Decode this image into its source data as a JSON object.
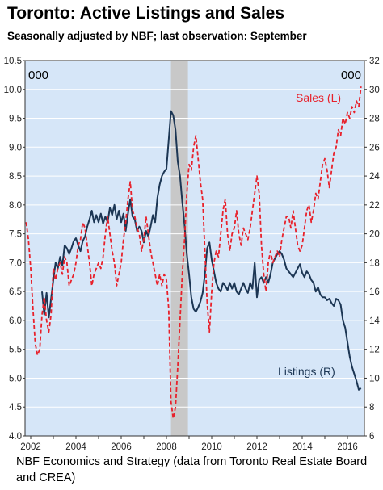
{
  "title": "Toronto: Active Listings and Sales",
  "subtitle": "Seasonally adjusted by NBF; last observation: September",
  "source": "NBF Economics and Strategy (data from Toronto Real Estate Board and CREA)",
  "chart_data": {
    "type": "line",
    "y_left_unit": "000",
    "y_right_unit": "000",
    "y_left_range": [
      4.0,
      10.5
    ],
    "y_right_range": [
      6,
      32
    ],
    "y_left_ticks": [
      "4.0",
      "4.5",
      "5.0",
      "5.5",
      "6.0",
      "6.5",
      "7.0",
      "7.5",
      "8.0",
      "8.5",
      "9.0",
      "9.5",
      "10.0",
      "10.5"
    ],
    "y_right_ticks": [
      "6",
      "8",
      "10",
      "12",
      "14",
      "16",
      "18",
      "20",
      "22",
      "24",
      "26",
      "28",
      "30",
      "32"
    ],
    "x_range": [
      2001.75,
      2016.75
    ],
    "x_tick_labels": [
      "2002",
      "2004",
      "2006",
      "2008",
      "2010",
      "2012",
      "2014",
      "2016"
    ],
    "recession_shade": [
      2008.2,
      2008.95
    ],
    "plot_background": "#d6e6f8",
    "colors": {
      "listings": "#1c3654",
      "sales": "#e8212b",
      "shade": "#c8c8c8"
    },
    "series": [
      {
        "name": "Listings (R)",
        "label": "Listings (R)",
        "axis": "right",
        "style": "solid",
        "color": "#1c3654",
        "points": [
          [
            2002.5,
            16.0
          ],
          [
            2002.6,
            14.4
          ],
          [
            2002.7,
            15.9
          ],
          [
            2002.8,
            14.2
          ],
          [
            2002.9,
            15.5
          ],
          [
            2003.0,
            16.8
          ],
          [
            2003.1,
            18.0
          ],
          [
            2003.2,
            17.6
          ],
          [
            2003.3,
            18.4
          ],
          [
            2003.4,
            17.8
          ],
          [
            2003.5,
            19.2
          ],
          [
            2003.6,
            19.0
          ],
          [
            2003.7,
            18.6
          ],
          [
            2003.8,
            19.0
          ],
          [
            2003.9,
            19.5
          ],
          [
            2004.0,
            19.7
          ],
          [
            2004.1,
            19.2
          ],
          [
            2004.2,
            18.8
          ],
          [
            2004.3,
            19.5
          ],
          [
            2004.4,
            19.8
          ],
          [
            2004.5,
            20.5
          ],
          [
            2004.6,
            21.0
          ],
          [
            2004.7,
            21.6
          ],
          [
            2004.8,
            20.8
          ],
          [
            2004.9,
            21.3
          ],
          [
            2005.0,
            20.8
          ],
          [
            2005.1,
            21.4
          ],
          [
            2005.2,
            20.7
          ],
          [
            2005.3,
            21.2
          ],
          [
            2005.4,
            20.8
          ],
          [
            2005.5,
            21.8
          ],
          [
            2005.6,
            21.3
          ],
          [
            2005.7,
            22.0
          ],
          [
            2005.8,
            21.0
          ],
          [
            2005.9,
            21.6
          ],
          [
            2006.0,
            20.8
          ],
          [
            2006.1,
            21.4
          ],
          [
            2006.2,
            20.2
          ],
          [
            2006.3,
            21.4
          ],
          [
            2006.4,
            22.4
          ],
          [
            2006.5,
            21.2
          ],
          [
            2006.6,
            21.0
          ],
          [
            2006.7,
            20.2
          ],
          [
            2006.8,
            20.5
          ],
          [
            2006.9,
            20.2
          ],
          [
            2007.0,
            19.4
          ],
          [
            2007.1,
            20.2
          ],
          [
            2007.2,
            19.8
          ],
          [
            2007.3,
            20.5
          ],
          [
            2007.4,
            21.3
          ],
          [
            2007.5,
            20.8
          ],
          [
            2007.6,
            22.5
          ],
          [
            2007.7,
            23.4
          ],
          [
            2007.8,
            24.0
          ],
          [
            2007.9,
            24.3
          ],
          [
            2008.0,
            24.5
          ],
          [
            2008.1,
            26.5
          ],
          [
            2008.2,
            28.5
          ],
          [
            2008.3,
            28.2
          ],
          [
            2008.4,
            27.2
          ],
          [
            2008.5,
            25.0
          ],
          [
            2008.6,
            24.0
          ],
          [
            2008.7,
            22.2
          ],
          [
            2008.8,
            20.6
          ],
          [
            2008.9,
            18.6
          ],
          [
            2009.0,
            17.2
          ],
          [
            2009.1,
            15.6
          ],
          [
            2009.2,
            14.8
          ],
          [
            2009.3,
            14.6
          ],
          [
            2009.4,
            14.9
          ],
          [
            2009.5,
            15.3
          ],
          [
            2009.6,
            15.9
          ],
          [
            2009.7,
            17.2
          ],
          [
            2009.8,
            19.0
          ],
          [
            2009.9,
            19.4
          ],
          [
            2010.0,
            18.2
          ],
          [
            2010.1,
            17.4
          ],
          [
            2010.2,
            16.6
          ],
          [
            2010.3,
            16.2
          ],
          [
            2010.4,
            16.0
          ],
          [
            2010.5,
            16.6
          ],
          [
            2010.6,
            16.4
          ],
          [
            2010.7,
            16.1
          ],
          [
            2010.8,
            16.6
          ],
          [
            2010.9,
            16.2
          ],
          [
            2011.0,
            16.6
          ],
          [
            2011.1,
            16.0
          ],
          [
            2011.2,
            15.8
          ],
          [
            2011.3,
            16.2
          ],
          [
            2011.4,
            16.6
          ],
          [
            2011.5,
            16.2
          ],
          [
            2011.6,
            15.9
          ],
          [
            2011.7,
            16.6
          ],
          [
            2011.8,
            16.2
          ],
          [
            2011.9,
            18.0
          ],
          [
            2012.0,
            15.6
          ],
          [
            2012.1,
            16.8
          ],
          [
            2012.2,
            17.0
          ],
          [
            2012.3,
            16.6
          ],
          [
            2012.4,
            17.0
          ],
          [
            2012.5,
            16.6
          ],
          [
            2012.6,
            17.2
          ],
          [
            2012.7,
            18.0
          ],
          [
            2012.8,
            18.3
          ],
          [
            2012.9,
            18.6
          ],
          [
            2013.0,
            18.8
          ],
          [
            2013.1,
            18.6
          ],
          [
            2013.2,
            18.2
          ],
          [
            2013.3,
            17.6
          ],
          [
            2013.4,
            17.4
          ],
          [
            2013.5,
            17.2
          ],
          [
            2013.6,
            17.0
          ],
          [
            2013.7,
            17.3
          ],
          [
            2013.8,
            17.6
          ],
          [
            2013.9,
            17.9
          ],
          [
            2014.0,
            17.3
          ],
          [
            2014.1,
            17.0
          ],
          [
            2014.2,
            17.4
          ],
          [
            2014.3,
            17.2
          ],
          [
            2014.4,
            16.8
          ],
          [
            2014.5,
            16.6
          ],
          [
            2014.6,
            16.0
          ],
          [
            2014.7,
            16.3
          ],
          [
            2014.8,
            15.8
          ],
          [
            2014.9,
            15.6
          ],
          [
            2015.0,
            15.6
          ],
          [
            2015.1,
            15.4
          ],
          [
            2015.2,
            15.5
          ],
          [
            2015.3,
            15.2
          ],
          [
            2015.4,
            15.0
          ],
          [
            2015.5,
            15.5
          ],
          [
            2015.6,
            15.4
          ],
          [
            2015.7,
            15.1
          ],
          [
            2015.8,
            14.0
          ],
          [
            2015.9,
            13.5
          ],
          [
            2016.0,
            12.5
          ],
          [
            2016.1,
            11.5
          ],
          [
            2016.2,
            10.8
          ],
          [
            2016.3,
            10.3
          ],
          [
            2016.4,
            9.8
          ],
          [
            2016.5,
            9.2
          ],
          [
            2016.6,
            9.3
          ]
        ]
      },
      {
        "name": "Sales (L)",
        "label": "Sales (L)",
        "axis": "left",
        "style": "dashed",
        "color": "#e8212b",
        "points": [
          [
            2001.8,
            7.7
          ],
          [
            2001.9,
            7.4
          ],
          [
            2002.0,
            6.9
          ],
          [
            2002.1,
            6.2
          ],
          [
            2002.2,
            5.6
          ],
          [
            2002.3,
            5.4
          ],
          [
            2002.4,
            5.5
          ],
          [
            2002.5,
            6.1
          ],
          [
            2002.6,
            6.4
          ],
          [
            2002.7,
            6.0
          ],
          [
            2002.8,
            5.8
          ],
          [
            2002.9,
            6.1
          ],
          [
            2003.0,
            6.9
          ],
          [
            2003.1,
            6.7
          ],
          [
            2003.2,
            6.9
          ],
          [
            2003.3,
            7.0
          ],
          [
            2003.4,
            6.8
          ],
          [
            2003.5,
            7.1
          ],
          [
            2003.6,
            7.0
          ],
          [
            2003.7,
            6.6
          ],
          [
            2003.8,
            6.7
          ],
          [
            2003.9,
            6.8
          ],
          [
            2004.0,
            7.0
          ],
          [
            2004.1,
            7.3
          ],
          [
            2004.2,
            7.4
          ],
          [
            2004.3,
            7.7
          ],
          [
            2004.4,
            7.6
          ],
          [
            2004.5,
            7.3
          ],
          [
            2004.6,
            7.0
          ],
          [
            2004.7,
            6.6
          ],
          [
            2004.8,
            6.8
          ],
          [
            2004.9,
            6.9
          ],
          [
            2005.0,
            7.0
          ],
          [
            2005.1,
            6.9
          ],
          [
            2005.2,
            7.1
          ],
          [
            2005.3,
            7.5
          ],
          [
            2005.4,
            7.8
          ],
          [
            2005.5,
            7.5
          ],
          [
            2005.6,
            7.2
          ],
          [
            2005.7,
            7.0
          ],
          [
            2005.8,
            6.6
          ],
          [
            2005.9,
            6.8
          ],
          [
            2006.0,
            7.0
          ],
          [
            2006.1,
            7.4
          ],
          [
            2006.2,
            7.7
          ],
          [
            2006.3,
            8.1
          ],
          [
            2006.4,
            8.4
          ],
          [
            2006.5,
            7.9
          ],
          [
            2006.6,
            7.8
          ],
          [
            2006.7,
            7.6
          ],
          [
            2006.8,
            7.5
          ],
          [
            2006.9,
            7.2
          ],
          [
            2007.0,
            7.4
          ],
          [
            2007.1,
            7.8
          ],
          [
            2007.2,
            7.5
          ],
          [
            2007.3,
            7.2
          ],
          [
            2007.4,
            7.0
          ],
          [
            2007.5,
            6.8
          ],
          [
            2007.6,
            6.6
          ],
          [
            2007.7,
            6.8
          ],
          [
            2007.8,
            6.6
          ],
          [
            2007.9,
            6.8
          ],
          [
            2008.0,
            6.7
          ],
          [
            2008.1,
            6.2
          ],
          [
            2008.2,
            4.6
          ],
          [
            2008.3,
            4.3
          ],
          [
            2008.4,
            4.5
          ],
          [
            2008.5,
            5.2
          ],
          [
            2008.6,
            6.0
          ],
          [
            2008.7,
            6.8
          ],
          [
            2008.8,
            7.4
          ],
          [
            2008.9,
            8.2
          ],
          [
            2009.0,
            8.7
          ],
          [
            2009.1,
            8.6
          ],
          [
            2009.2,
            9.0
          ],
          [
            2009.3,
            9.2
          ],
          [
            2009.4,
            8.8
          ],
          [
            2009.5,
            8.4
          ],
          [
            2009.6,
            8.1
          ],
          [
            2009.7,
            7.2
          ],
          [
            2009.8,
            6.3
          ],
          [
            2009.9,
            5.8
          ],
          [
            2010.0,
            6.5
          ],
          [
            2010.1,
            7.0
          ],
          [
            2010.2,
            7.2
          ],
          [
            2010.3,
            7.1
          ],
          [
            2010.4,
            7.5
          ],
          [
            2010.5,
            7.9
          ],
          [
            2010.6,
            8.1
          ],
          [
            2010.7,
            7.5
          ],
          [
            2010.8,
            7.2
          ],
          [
            2010.9,
            7.5
          ],
          [
            2011.0,
            7.6
          ],
          [
            2011.1,
            7.9
          ],
          [
            2011.2,
            7.5
          ],
          [
            2011.3,
            7.3
          ],
          [
            2011.4,
            7.6
          ],
          [
            2011.5,
            7.5
          ],
          [
            2011.6,
            7.4
          ],
          [
            2011.7,
            7.6
          ],
          [
            2011.8,
            7.9
          ],
          [
            2011.9,
            8.2
          ],
          [
            2012.0,
            8.5
          ],
          [
            2012.1,
            8.2
          ],
          [
            2012.2,
            7.3
          ],
          [
            2012.3,
            6.8
          ],
          [
            2012.4,
            6.5
          ],
          [
            2012.5,
            7.0
          ],
          [
            2012.6,
            7.2
          ],
          [
            2012.7,
            7.0
          ],
          [
            2012.8,
            7.1
          ],
          [
            2012.9,
            7.2
          ],
          [
            2013.0,
            7.1
          ],
          [
            2013.1,
            7.4
          ],
          [
            2013.2,
            7.6
          ],
          [
            2013.3,
            7.8
          ],
          [
            2013.4,
            7.8
          ],
          [
            2013.5,
            7.6
          ],
          [
            2013.6,
            7.9
          ],
          [
            2013.7,
            7.6
          ],
          [
            2013.8,
            7.3
          ],
          [
            2013.9,
            7.2
          ],
          [
            2014.0,
            7.3
          ],
          [
            2014.1,
            7.6
          ],
          [
            2014.2,
            7.9
          ],
          [
            2014.3,
            8.0
          ],
          [
            2014.4,
            7.7
          ],
          [
            2014.5,
            7.9
          ],
          [
            2014.6,
            8.2
          ],
          [
            2014.7,
            8.1
          ],
          [
            2014.8,
            8.4
          ],
          [
            2014.9,
            8.7
          ],
          [
            2015.0,
            8.8
          ],
          [
            2015.1,
            8.6
          ],
          [
            2015.2,
            8.3
          ],
          [
            2015.3,
            8.6
          ],
          [
            2015.4,
            8.9
          ],
          [
            2015.5,
            9.0
          ],
          [
            2015.6,
            9.3
          ],
          [
            2015.7,
            9.2
          ],
          [
            2015.8,
            9.5
          ],
          [
            2015.9,
            9.4
          ],
          [
            2016.0,
            9.6
          ],
          [
            2016.1,
            9.5
          ],
          [
            2016.2,
            9.7
          ],
          [
            2016.3,
            9.6
          ],
          [
            2016.4,
            9.8
          ],
          [
            2016.5,
            9.7
          ],
          [
            2016.6,
            10.05
          ]
        ]
      }
    ]
  }
}
